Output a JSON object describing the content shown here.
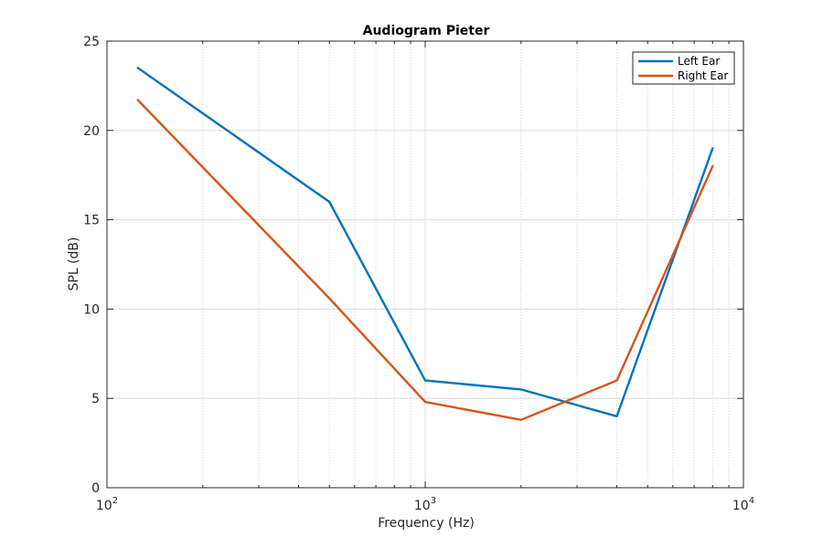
{
  "chart_data": {
    "type": "line",
    "title": "Audiogram Pieter",
    "xlabel": "Frequency (Hz)",
    "ylabel": "SPL (dB)",
    "x_scale": "log",
    "xlim": [
      100,
      10000
    ],
    "ylim": [
      0,
      25
    ],
    "x_ticks": [
      {
        "value": 100,
        "base": "10",
        "exp": "2"
      },
      {
        "value": 1000,
        "base": "10",
        "exp": "3"
      },
      {
        "value": 10000,
        "base": "10",
        "exp": "4"
      }
    ],
    "y_ticks": [
      0,
      5,
      10,
      15,
      20,
      25
    ],
    "grid": true,
    "legend": "top-right",
    "x": [
      125,
      500,
      1000,
      2000,
      4000,
      8000
    ],
    "series": [
      {
        "name": "Left Ear",
        "color": "#0072BD",
        "values": [
          23.5,
          16,
          6,
          5.5,
          4,
          19
        ]
      },
      {
        "name": "Right Ear",
        "color": "#D95319",
        "values": [
          21.7,
          10.6,
          4.8,
          3.8,
          6,
          18
        ]
      }
    ]
  }
}
